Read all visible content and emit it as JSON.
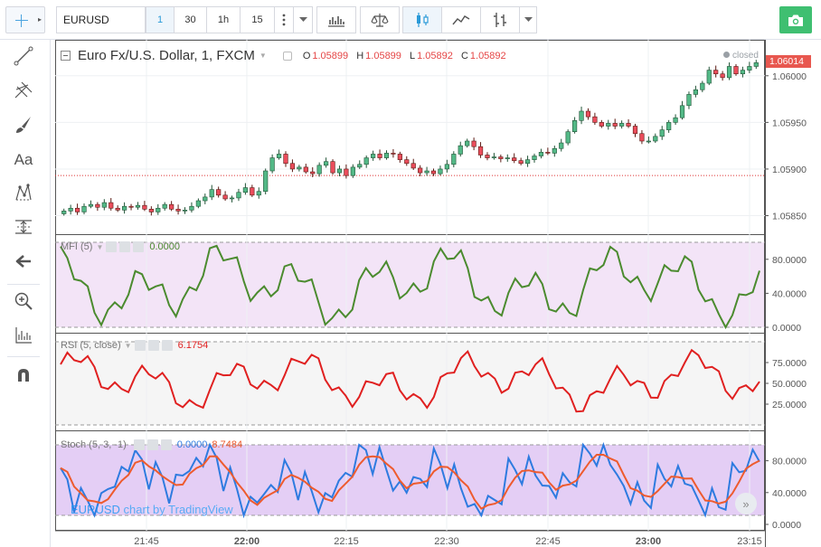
{
  "toolbar": {
    "symbol": "EURUSD",
    "timeframes": [
      "1",
      "30",
      "1h",
      "15"
    ],
    "active_timeframe": "1"
  },
  "legend": {
    "title": "Euro Fx/U.S. Dollar, 1, FXCM",
    "open_label": "O",
    "open": "1.05899",
    "high_label": "H",
    "high": "1.05899",
    "low_label": "L",
    "low": "1.05892",
    "close_label": "C",
    "close": "1.05892",
    "status": "closed"
  },
  "last_price": "1.06014",
  "price_axis": [
    "1.06000",
    "1.05950",
    "1.05900",
    "1.05850"
  ],
  "mfi": {
    "label": "MFI (5)",
    "value": "0.0000",
    "axis": [
      "80.0000",
      "40.0000",
      "0.0000"
    ],
    "color": "#4b8b2f"
  },
  "rsi": {
    "label": "RSI (5, close)",
    "value": "6.1754",
    "axis": [
      "75.0000",
      "50.0000",
      "25.0000"
    ],
    "color": "#e02020"
  },
  "stoch": {
    "label": "Stoch (5, 3, -1)",
    "value_k": "0.0000",
    "value_d": "8.7484",
    "axis": [
      "80.0000",
      "40.0000",
      "0.0000"
    ],
    "color_k": "#2e7be0",
    "color_d": "#ee5b2e"
  },
  "time_axis": [
    "21:45",
    "22:00",
    "22:15",
    "22:30",
    "22:45",
    "23:00",
    "23:15"
  ],
  "watermark": {
    "symbol": "EURUSD",
    "text": "chart by TradingView"
  },
  "chart_data": {
    "type": "candlestick",
    "title": "Euro Fx/U.S. Dollar, 1, FXCM",
    "x": [
      "21:45",
      "22:00",
      "22:15",
      "22:30",
      "22:45",
      "23:00",
      "23:15"
    ],
    "ylim": [
      1.05835,
      1.06025
    ],
    "close_series": [
      1.05855,
      1.05858,
      1.05854,
      1.0586,
      1.05862,
      1.05859,
      1.05864,
      1.05858,
      1.05856,
      1.0586,
      1.05859,
      1.05861,
      1.05857,
      1.05854,
      1.05858,
      1.05862,
      1.05857,
      1.05855,
      1.05856,
      1.0586,
      1.05866,
      1.0587,
      1.05878,
      1.05872,
      1.05868,
      1.05869,
      1.05875,
      1.0588,
      1.05872,
      1.05876,
      1.05898,
      1.05912,
      1.05916,
      1.05906,
      1.059,
      1.05902,
      1.05897,
      1.05895,
      1.05904,
      1.05908,
      1.05896,
      1.059,
      1.05893,
      1.05902,
      1.05905,
      1.05912,
      1.05916,
      1.05912,
      1.05917,
      1.05916,
      1.0591,
      1.05906,
      1.05901,
      1.05896,
      1.05898,
      1.05895,
      1.059,
      1.05905,
      1.05916,
      1.05925,
      1.0593,
      1.05924,
      1.05915,
      1.05912,
      1.05913,
      1.05911,
      1.05912,
      1.05909,
      1.05906,
      1.0591,
      1.05914,
      1.05918,
      1.05917,
      1.05922,
      1.05928,
      1.0594,
      1.05952,
      1.05962,
      1.05956,
      1.0595,
      1.05946,
      1.05949,
      1.05946,
      1.05949,
      1.05946,
      1.05938,
      1.0593,
      1.0593,
      1.05935,
      1.05942,
      1.0595,
      1.05955,
      1.05968,
      1.0598,
      1.05985,
      1.05992,
      1.06006,
      1.06002,
      1.05998,
      1.0601,
      1.06002,
      1.06006,
      1.0601,
      1.06014
    ]
  }
}
